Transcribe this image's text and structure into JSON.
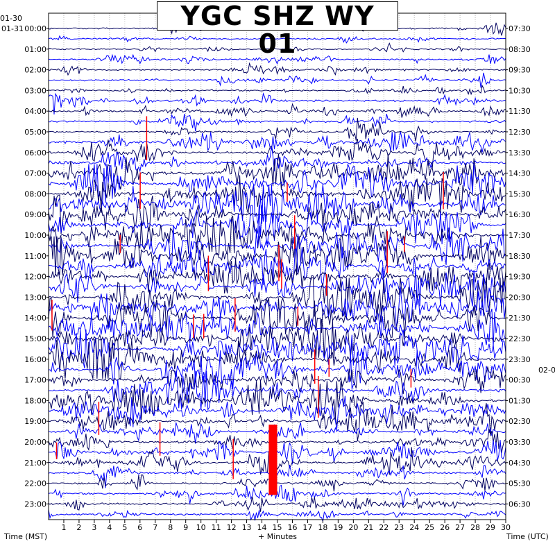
{
  "chart_data": {
    "type": "helicorder",
    "title": "YGC SHZ WY 01",
    "xlabel": "+ Minutes",
    "x_ticks": [
      "1",
      "2",
      "3",
      "4",
      "5",
      "6",
      "7",
      "8",
      "9",
      "10",
      "11",
      "12",
      "13",
      "14",
      "15",
      "16",
      "17",
      "18",
      "19",
      "20",
      "21",
      "22",
      "23",
      "24",
      "25",
      "26",
      "27",
      "28",
      "29",
      "30"
    ],
    "xlim": [
      0,
      30
    ],
    "left_axis_label": "Time (MST)",
    "right_axis_label": "Time (UTC)",
    "left_date_labels": [
      "01-30",
      "01-31"
    ],
    "right_date_labels": [
      "02-0"
    ],
    "left_hour_labels": [
      "00:00",
      "01:00",
      "02:00",
      "03:00",
      "04:00",
      "05:00",
      "06:00",
      "07:00",
      "08:00",
      "09:00",
      "10:00",
      "11:00",
      "12:00",
      "13:00",
      "14:00",
      "15:00",
      "16:00",
      "17:00",
      "18:00",
      "19:00",
      "20:00",
      "21:00",
      "22:00",
      "23:00"
    ],
    "right_hour_labels": [
      "07:30",
      "08:30",
      "09:30",
      "10:30",
      "11:30",
      "12:30",
      "13:30",
      "14:30",
      "15:30",
      "16:30",
      "17:30",
      "18:30",
      "19:30",
      "20:30",
      "21:30",
      "22:30",
      "23:30",
      "00:30",
      "01:30",
      "02:30",
      "03:30",
      "04:30",
      "05:30",
      "06:30"
    ],
    "traces_per_hour": 2,
    "trace_colors": [
      "#000060",
      "#0000ff"
    ],
    "clip_color": "#ff0000",
    "grid": true
  }
}
